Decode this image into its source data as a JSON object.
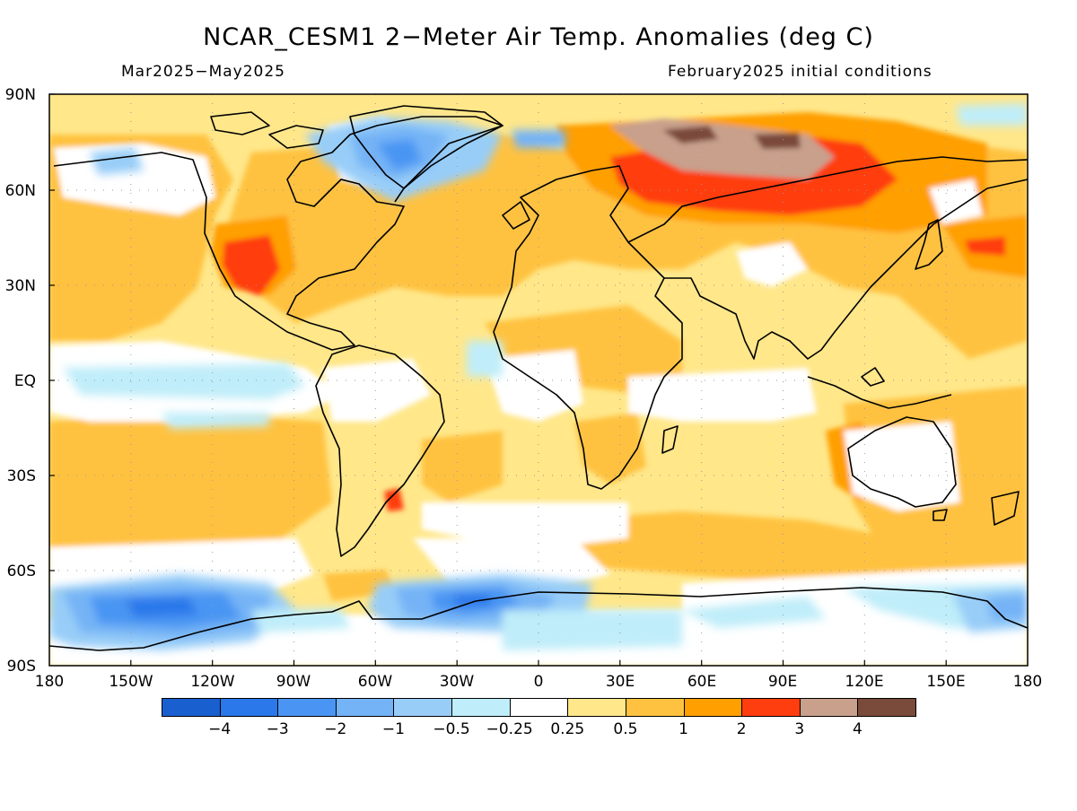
{
  "title": "NCAR_CESM1 2−Meter Air Temp. Anomalies (deg C)",
  "subtitle_left": "Mar2025−May2025",
  "subtitle_right": "February2025 initial conditions",
  "lat_labels": [
    "90N",
    "60N",
    "30N",
    "EQ",
    "30S",
    "60S",
    "90S"
  ],
  "lon_labels": [
    "180",
    "150W",
    "120W",
    "90W",
    "60W",
    "30W",
    "0",
    "30E",
    "60E",
    "90E",
    "120E",
    "150E",
    "180"
  ],
  "colorbar": {
    "colors": [
      "#1a5fd0",
      "#2a78ea",
      "#4a95f3",
      "#74b3f6",
      "#98cdf8",
      "#bfedf9",
      "#ffffff",
      "#ffe78a",
      "#ffc240",
      "#ff9f00",
      "#ff3e10",
      "#c8a08c",
      "#7a4a3a"
    ],
    "labels": [
      "−4",
      "−3",
      "−2",
      "−1",
      "−0.5",
      "−0.25",
      "0.25",
      "0.5",
      "1",
      "2",
      "3",
      "4"
    ]
  },
  "chart_data": {
    "type": "heatmap",
    "title": "NCAR_CESM1 2−Meter Air Temp. Anomalies (deg C)",
    "period": "Mar2025−May2025",
    "initial_conditions": "February2025 initial conditions",
    "units": "deg C",
    "projection": "cylindrical equidistant",
    "lon_range": [
      -180,
      180
    ],
    "lat_range": [
      -90,
      90
    ],
    "levels": [
      -4,
      -3,
      -2,
      -1,
      -0.5,
      -0.25,
      0.25,
      0.5,
      1,
      2,
      3,
      4
    ],
    "grid": true
  }
}
